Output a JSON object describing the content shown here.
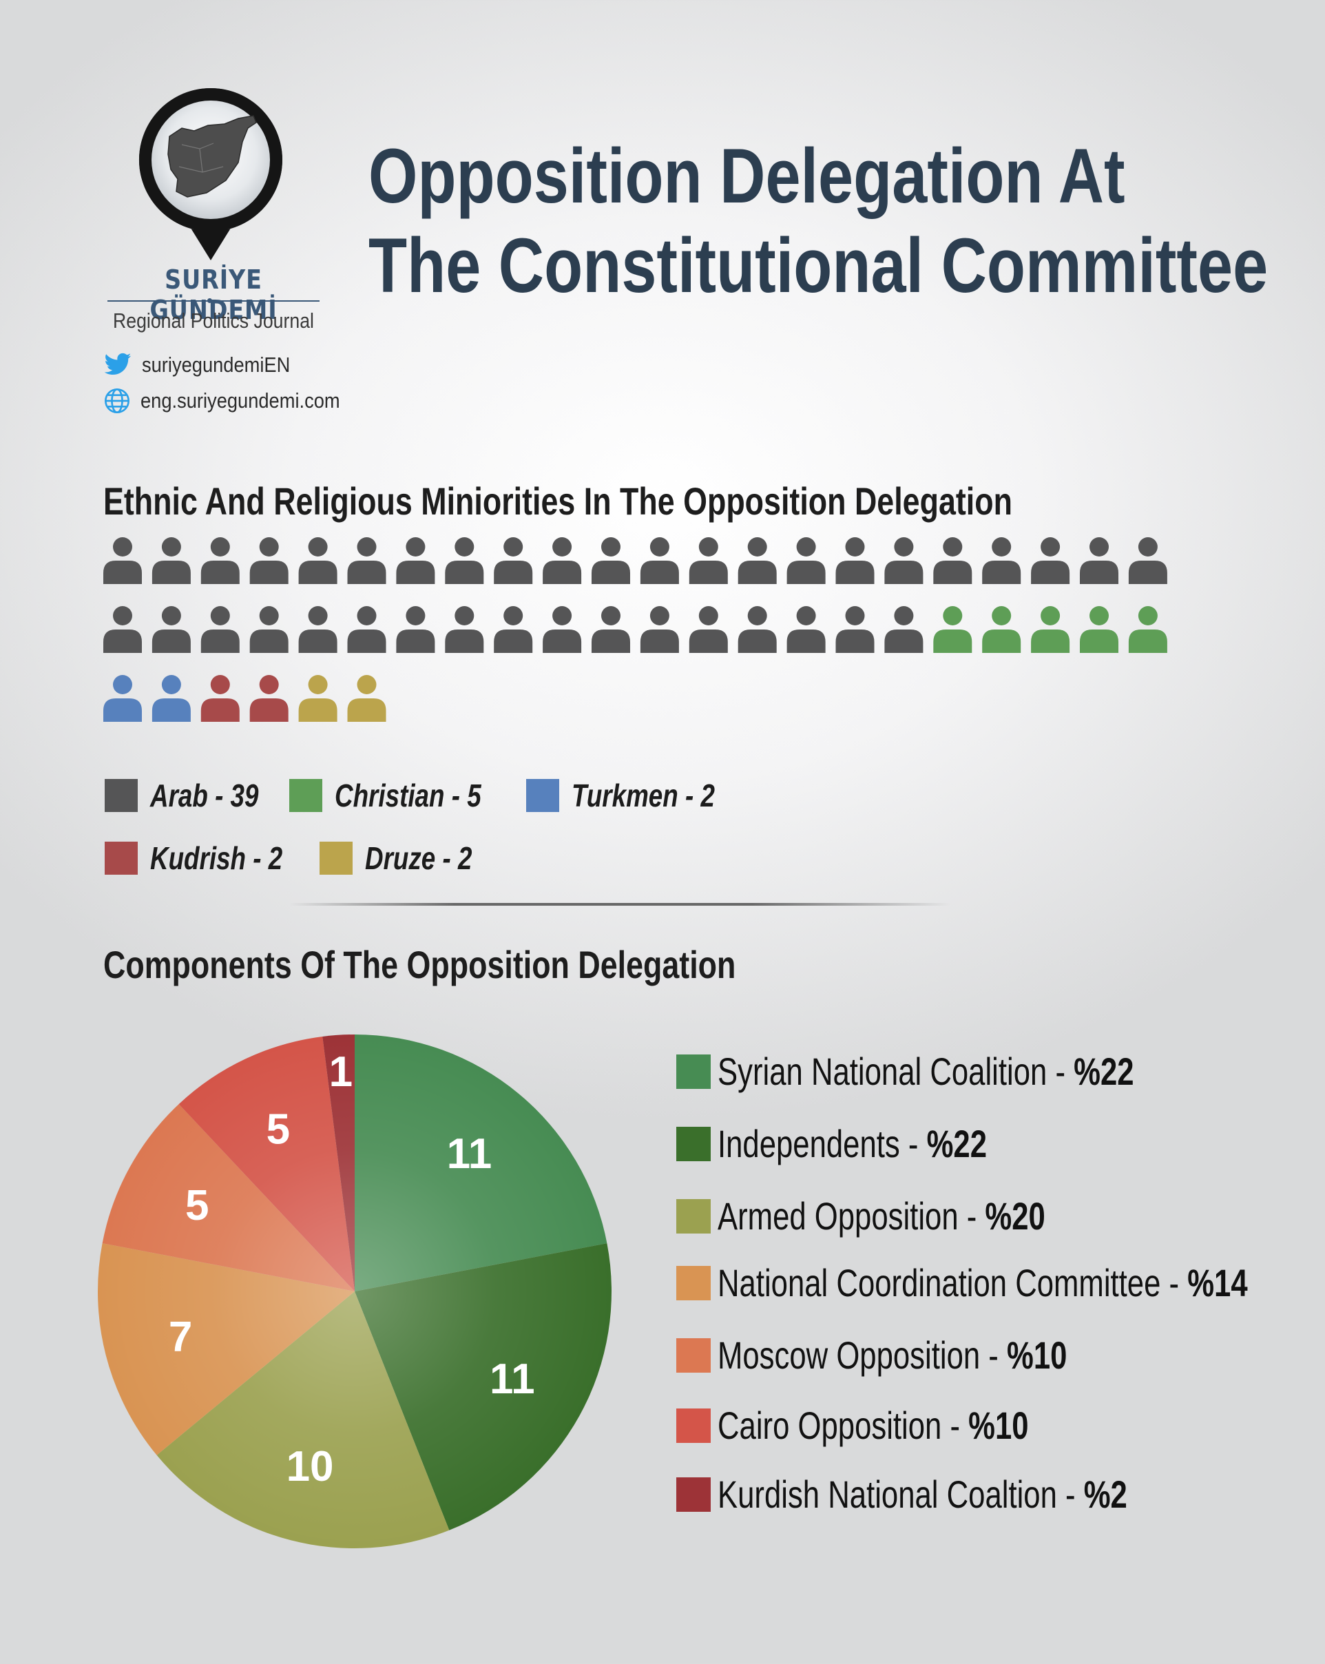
{
  "brand": {
    "name": "SURİYE GÜNDEMİ",
    "subtitle": "Regional Politics Journal",
    "twitter": "suriyegundemiEN",
    "website": "eng.suriyegundemi.com"
  },
  "header": {
    "title_line1": "Opposition Delegation At",
    "title_line2": "The Constitutional Committee"
  },
  "section1": {
    "title": "Ethnic And Religious Miniorities In The Opposition Delegation"
  },
  "section2": {
    "title": "Components Of The Opposition Delegation"
  },
  "colors": {
    "arab": "#555556",
    "christian": "#5e9e56",
    "turkmen": "#5781bd",
    "kurdish": "#a74a4a",
    "druze": "#bba44c",
    "title": "#2c3e50",
    "brand": "#3a5878"
  },
  "chart_data": [
    {
      "type": "pictograph",
      "title": "Ethnic And Religious Miniorities In The Opposition Delegation",
      "categories": [
        "Arab",
        "Christian",
        "Turkmen",
        "Kudrish",
        "Druze"
      ],
      "values": [
        39,
        5,
        2,
        2,
        2
      ],
      "colors": [
        "#555556",
        "#5e9e56",
        "#5781bd",
        "#a74a4a",
        "#bba44c"
      ],
      "legend_labels": [
        "Arab - 39",
        "Christian - 5",
        "Turkmen - 2",
        "Kudrish - 2",
        "Druze - 2"
      ],
      "icons_per_row": 22
    },
    {
      "type": "pie",
      "title": "Components Of The Opposition Delegation",
      "series": [
        {
          "name": "Syrian National Coalition",
          "value": 11,
          "percent_label": "%22",
          "color": "#478c53"
        },
        {
          "name": "Independents",
          "value": 11,
          "percent_label": "%22",
          "color": "#3a6f2b"
        },
        {
          "name": "Armed Opposition",
          "value": 10,
          "percent_label": "%20",
          "color": "#9ba150"
        },
        {
          "name": "National Coordination Committee",
          "value": 7,
          "percent_label": "%14",
          "color": "#d99453"
        },
        {
          "name": "Moscow Opposition",
          "value": 5,
          "percent_label": "%10",
          "color": "#dc7852"
        },
        {
          "name": "Cairo Opposition",
          "value": 5,
          "percent_label": "%10",
          "color": "#d45549"
        },
        {
          "name": "Kurdish National Coaltion",
          "value": 1,
          "percent_label": "%2",
          "color": "#9d3337"
        }
      ]
    }
  ]
}
